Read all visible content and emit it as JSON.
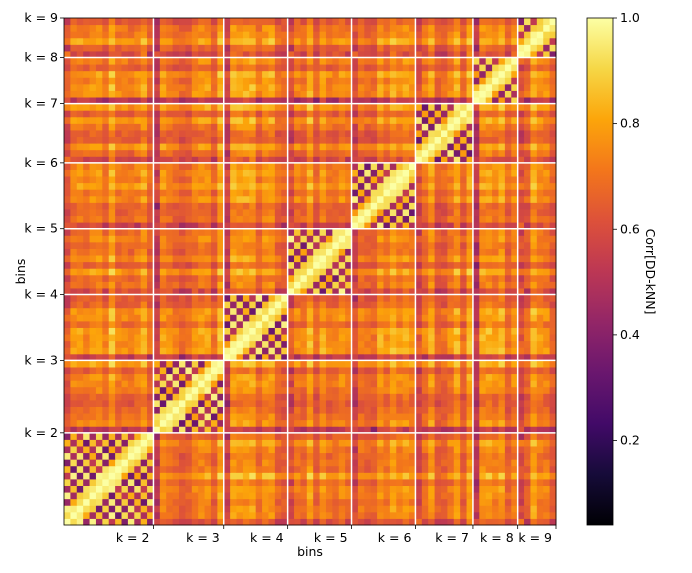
{
  "chart_data": {
    "type": "heatmap",
    "title": "",
    "xlabel": "bins",
    "ylabel": "bins",
    "x_ticks": [
      "k = 2",
      "k = 3",
      "k = 4",
      "k = 5",
      "k = 6",
      "k = 7",
      "k = 8",
      "k = 9"
    ],
    "y_ticks": [
      "k = 2",
      "k = 3",
      "k = 4",
      "k = 5",
      "k = 6",
      "k = 7",
      "k = 8",
      "k = 9"
    ],
    "block_sizes": [
      14,
      11,
      10,
      10,
      10,
      9,
      7,
      6
    ],
    "diagonal_value": 1.0,
    "colormap": "inferno",
    "colorbar": {
      "label": "Corr[DD-kNN]",
      "range": [
        0.04,
        1.0
      ],
      "ticks": [
        "0.2",
        "0.4",
        "0.6",
        "0.8",
        "1.0"
      ],
      "tick_values": [
        0.2,
        0.4,
        0.6,
        0.8,
        1.0
      ]
    },
    "grid": "white separator lines at block boundaries",
    "legend": "none"
  }
}
